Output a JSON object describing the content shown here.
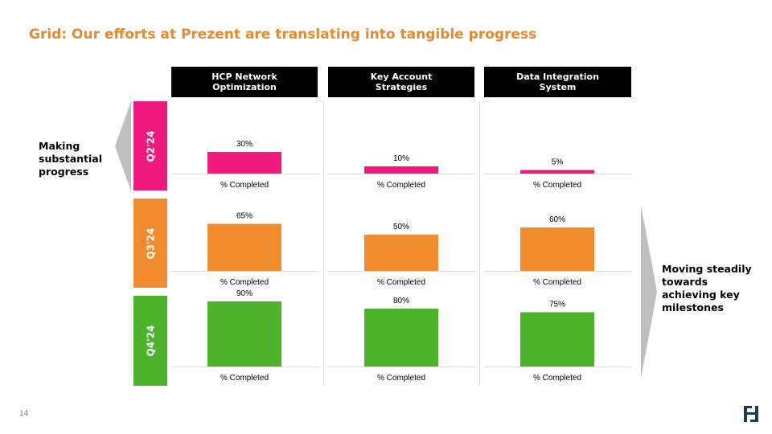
{
  "title": "Grid: Our efforts at Prezent are translating into tangible progress",
  "columns": [
    "HCP Network\nOptimization",
    "Key Account\nStrategies",
    "Data Integration\nSystem"
  ],
  "rows": [
    {
      "label": "Q2'24",
      "color": "#F0197D"
    },
    {
      "label": "Q3'24",
      "color": "#F08C2E"
    },
    {
      "label": "Q4'24",
      "color": "#4DB32A"
    }
  ],
  "notes": {
    "left": "Making\nsubstantial\nprogress",
    "right": "Moving steadily\ntowards\nachieving key\nmilestones"
  },
  "page_number": "14",
  "chart_data": {
    "type": "bar",
    "categories": [
      "HCP Network Optimization",
      "Key Account Strategies",
      "Data Integration System"
    ],
    "series": [
      {
        "name": "Q2'24",
        "values": [
          30,
          10,
          5
        ]
      },
      {
        "name": "Q3'24",
        "values": [
          65,
          50,
          60
        ]
      },
      {
        "name": "Q4'24",
        "values": [
          90,
          80,
          75
        ]
      }
    ],
    "value_labels": [
      [
        "30%",
        "10%",
        "5%"
      ],
      [
        "65%",
        "50%",
        "60%"
      ],
      [
        "90%",
        "80%",
        "75%"
      ]
    ],
    "category_label": "% Completed",
    "ylim": [
      0,
      100
    ]
  }
}
